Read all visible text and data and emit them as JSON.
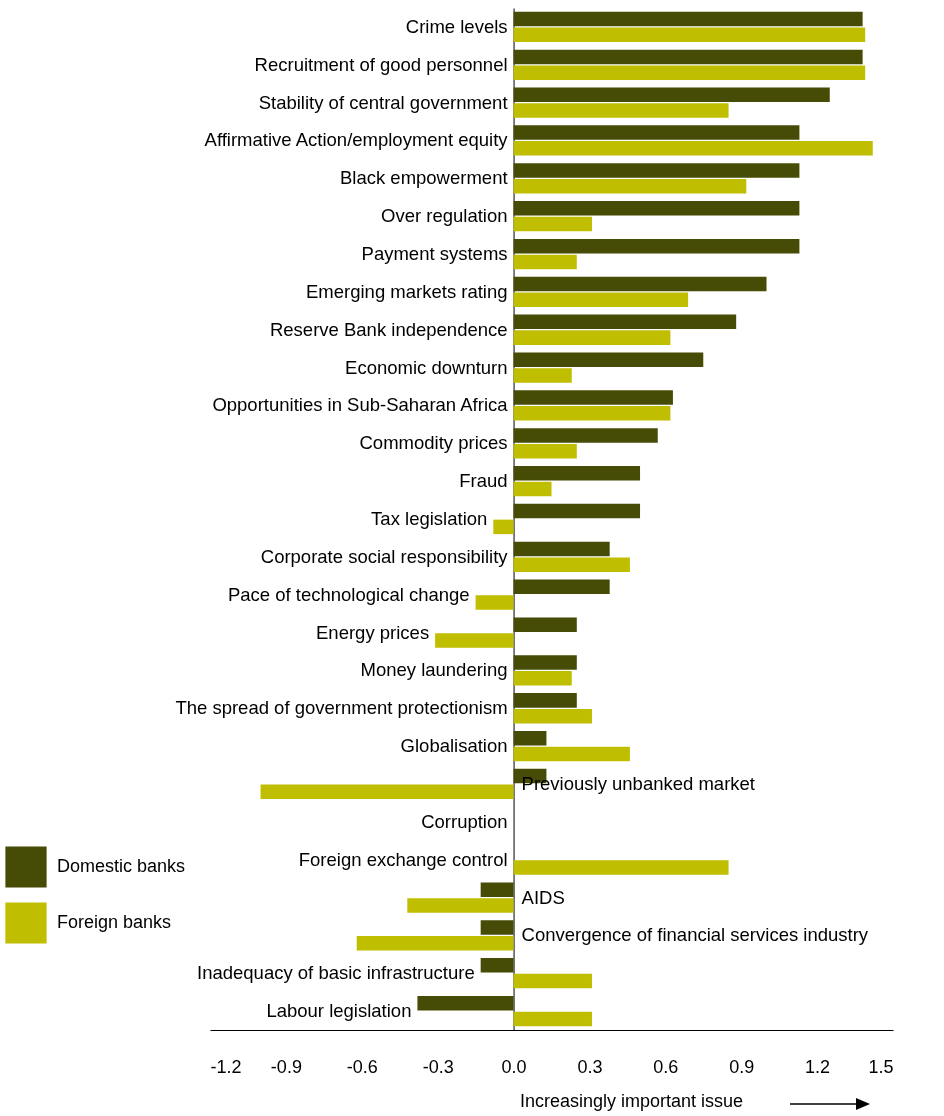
{
  "chart_data": {
    "type": "bar",
    "orientation": "horizontal",
    "xlabel": "Increasingly important issue",
    "categories": [
      "Crime levels",
      "Recruitment of good personnel",
      "Stability of central government",
      "Affirmative Action/employment equity",
      "Black empowerment",
      "Over regulation",
      "Payment systems",
      "Emerging markets rating",
      "Reserve Bank independence",
      "Economic downturn",
      "Opportunities in Sub-Saharan Africa",
      "Commodity prices",
      "Fraud",
      "Tax legislation",
      "Corporate social responsibility",
      "Pace of technological change",
      "Energy prices",
      "Money laundering",
      "The spread of government protectionism",
      "Globalisation",
      "Previously unbanked market",
      "Corruption",
      "Foreign exchange control",
      "AIDS",
      "Convergence of financial services industry",
      "Inadequacy of basic infrastructure",
      "Labour legislation"
    ],
    "series": [
      {
        "name": "Domestic banks",
        "color": "#464b05",
        "values": [
          1.38,
          1.38,
          1.25,
          1.13,
          1.13,
          1.13,
          1.13,
          1.0,
          0.88,
          0.75,
          0.63,
          0.57,
          0.5,
          0.5,
          0.38,
          0.38,
          0.25,
          0.25,
          0.25,
          0.13,
          0.13,
          null,
          null,
          -0.13,
          -0.13,
          -0.13,
          -0.38
        ]
      },
      {
        "name": "Foreign banks",
        "color": "#bfbe00",
        "values": [
          1.39,
          1.39,
          0.85,
          1.42,
          0.92,
          0.31,
          0.25,
          0.69,
          0.62,
          0.23,
          0.62,
          0.25,
          0.15,
          -0.08,
          0.46,
          -0.15,
          -0.31,
          0.23,
          0.31,
          0.46,
          -1.0,
          null,
          0.85,
          -0.42,
          -0.62,
          0.31,
          0.31
        ]
      }
    ],
    "xlim": [
      -1.2,
      1.5
    ],
    "xticks": [
      -1.2,
      -0.9,
      -0.6,
      -0.3,
      {
        "value": 0,
        "label": "0.0"
      },
      0.3,
      0.6,
      0.9,
      1.2,
      1.5
    ],
    "grid": false,
    "legend": "left"
  }
}
